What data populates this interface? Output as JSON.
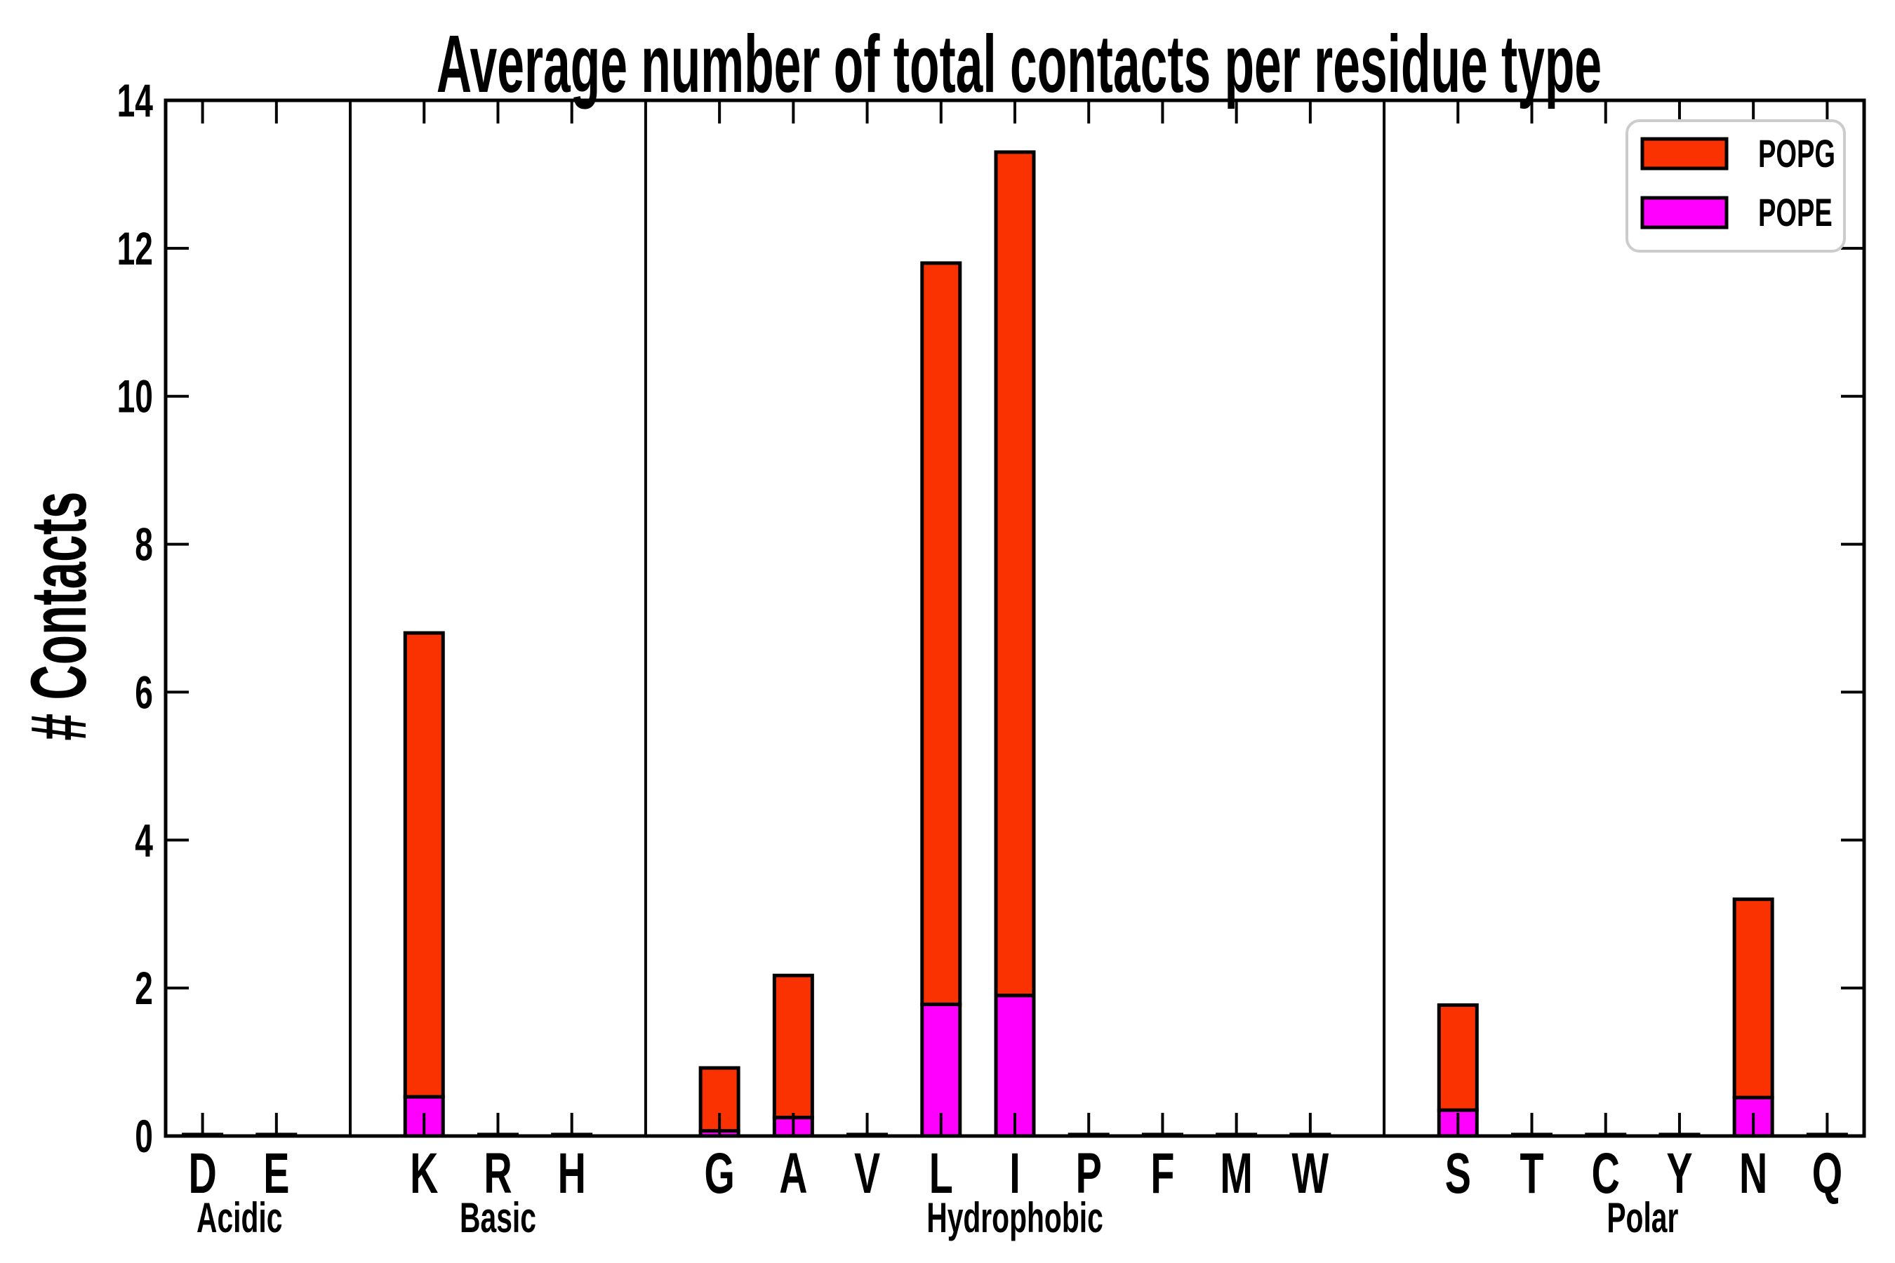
{
  "chart_data": {
    "type": "bar",
    "stacked": true,
    "title": "Average number of total contacts per residue type",
    "xlabel": "",
    "ylabel": "# Contacts",
    "ylim": [
      0,
      14
    ],
    "yticks": [
      0,
      2,
      4,
      6,
      8,
      10,
      12,
      14
    ],
    "grid": false,
    "legend_position": "upper right",
    "legend_border_color": "#cccccc",
    "bar_edge_color": "#000000",
    "groups": [
      {
        "label": "Acidic",
        "residues": [
          "D",
          "E"
        ]
      },
      {
        "label": "Basic",
        "residues": [
          "K",
          "R",
          "H"
        ]
      },
      {
        "label": "Hydrophobic",
        "residues": [
          "G",
          "A",
          "V",
          "L",
          "I",
          "P",
          "F",
          "M",
          "W"
        ]
      },
      {
        "label": "Polar",
        "residues": [
          "S",
          "T",
          "C",
          "Y",
          "N",
          "Q"
        ]
      }
    ],
    "categories": [
      "D",
      "E",
      "K",
      "R",
      "H",
      "G",
      "A",
      "V",
      "L",
      "I",
      "P",
      "F",
      "M",
      "W",
      "S",
      "T",
      "C",
      "Y",
      "N",
      "Q"
    ],
    "series": [
      {
        "name": "POPG",
        "color": "#fa3202",
        "values": [
          0.02,
          0.02,
          6.27,
          0.02,
          0.02,
          0.85,
          1.92,
          0.02,
          10.02,
          11.4,
          0.02,
          0.02,
          0.02,
          0.02,
          1.42,
          0.02,
          0.02,
          0.02,
          2.68,
          0.02
        ]
      },
      {
        "name": "POPE",
        "color": "#ff00ff",
        "values": [
          0,
          0,
          0.53,
          0,
          0,
          0.07,
          0.25,
          0,
          1.78,
          1.9,
          0,
          0,
          0,
          0,
          0.35,
          0,
          0,
          0,
          0.52,
          0
        ]
      }
    ],
    "totals": [
      0.02,
      0.02,
      6.8,
      0.02,
      0.02,
      0.92,
      2.17,
      0.02,
      11.8,
      13.3,
      0.02,
      0.02,
      0.02,
      0.02,
      1.77,
      0.02,
      0.02,
      0.02,
      3.2,
      0.02
    ]
  }
}
